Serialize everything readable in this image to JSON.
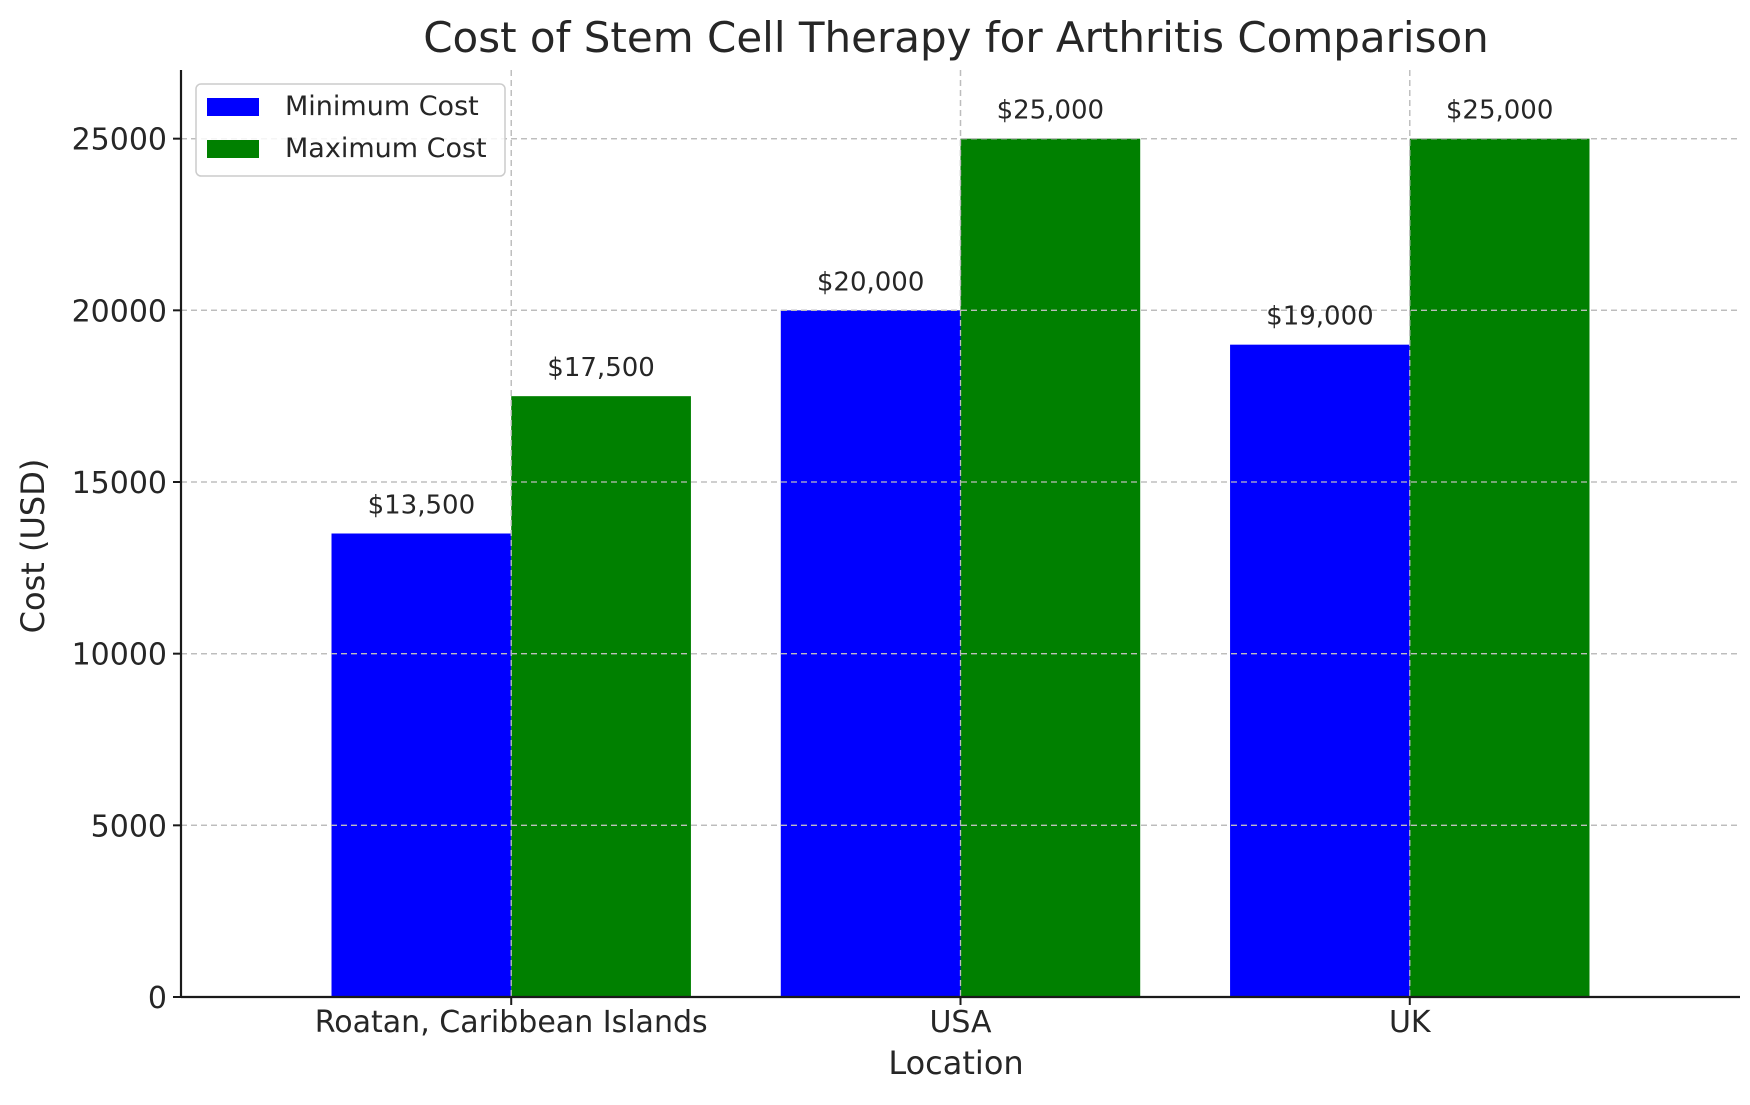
{
  "chart_data": {
    "type": "bar",
    "title": "Cost of Stem Cell Therapy for Arthritis Comparison",
    "xlabel": "Location",
    "ylabel": "Cost (USD)",
    "categories": [
      "Roatan, Caribbean Islands",
      "USA",
      "UK"
    ],
    "series": [
      {
        "name": "Minimum Cost",
        "color": "#0000ff",
        "values": [
          13500,
          20000,
          19000
        ],
        "labels": [
          "$13,500",
          "$20,000",
          "$19,000"
        ]
      },
      {
        "name": "Maximum Cost",
        "color": "#008000",
        "values": [
          17500,
          25000,
          25000
        ],
        "labels": [
          "$17,500",
          "$25,000",
          "$25,000"
        ]
      }
    ],
    "ylim": [
      0,
      27000
    ],
    "yticks": [
      0,
      5000,
      10000,
      15000,
      20000,
      25000
    ],
    "ytick_labels": [
      "0",
      "5000",
      "10000",
      "15000",
      "20000",
      "25000"
    ],
    "grid": true,
    "legend_position": "top-left"
  }
}
